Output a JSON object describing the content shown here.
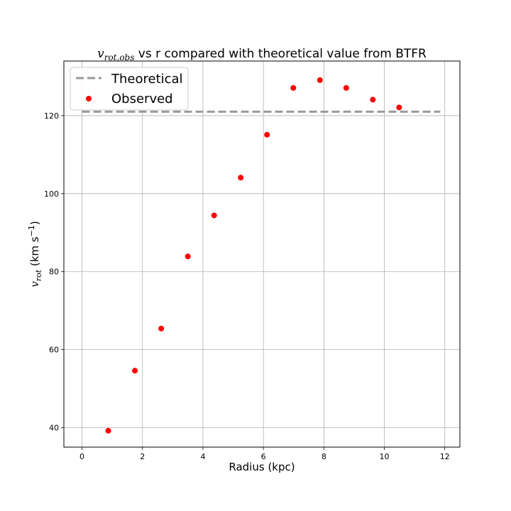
{
  "chart_data": {
    "type": "scatter",
    "title": {
      "symbol": "v",
      "subscript": "rot,obs",
      "rest": " vs r compared with theoretical value from BTFR"
    },
    "xlabel": "Radius (kpc)",
    "ylabel": {
      "symbol": "v",
      "subscript": "rot",
      "unit_prefix": " (km s",
      "unit_exponent": "−1",
      "unit_suffix": ")"
    },
    "xlim": [
      -0.6,
      12.5
    ],
    "ylim": [
      35,
      134
    ],
    "x_ticks": [
      0,
      2,
      4,
      6,
      8,
      10,
      12
    ],
    "y_ticks": [
      40,
      60,
      80,
      100,
      120
    ],
    "grid": true,
    "legend_position": "top-left",
    "series": [
      {
        "name": "Theoretical",
        "kind": "dashed-line",
        "color": "#999999",
        "x": [
          0,
          11.85
        ],
        "y": [
          121,
          121
        ]
      },
      {
        "name": "Observed",
        "kind": "points",
        "color": "#ff0000",
        "x": [
          0.87,
          1.75,
          2.62,
          3.5,
          4.37,
          5.25,
          6.12,
          6.99,
          7.87,
          8.74,
          9.62,
          10.49
        ],
        "y": [
          39.2,
          54.6,
          65.4,
          83.9,
          94.4,
          104.1,
          115.1,
          127.1,
          129.1,
          127.1,
          124.1,
          122.1
        ]
      }
    ]
  }
}
